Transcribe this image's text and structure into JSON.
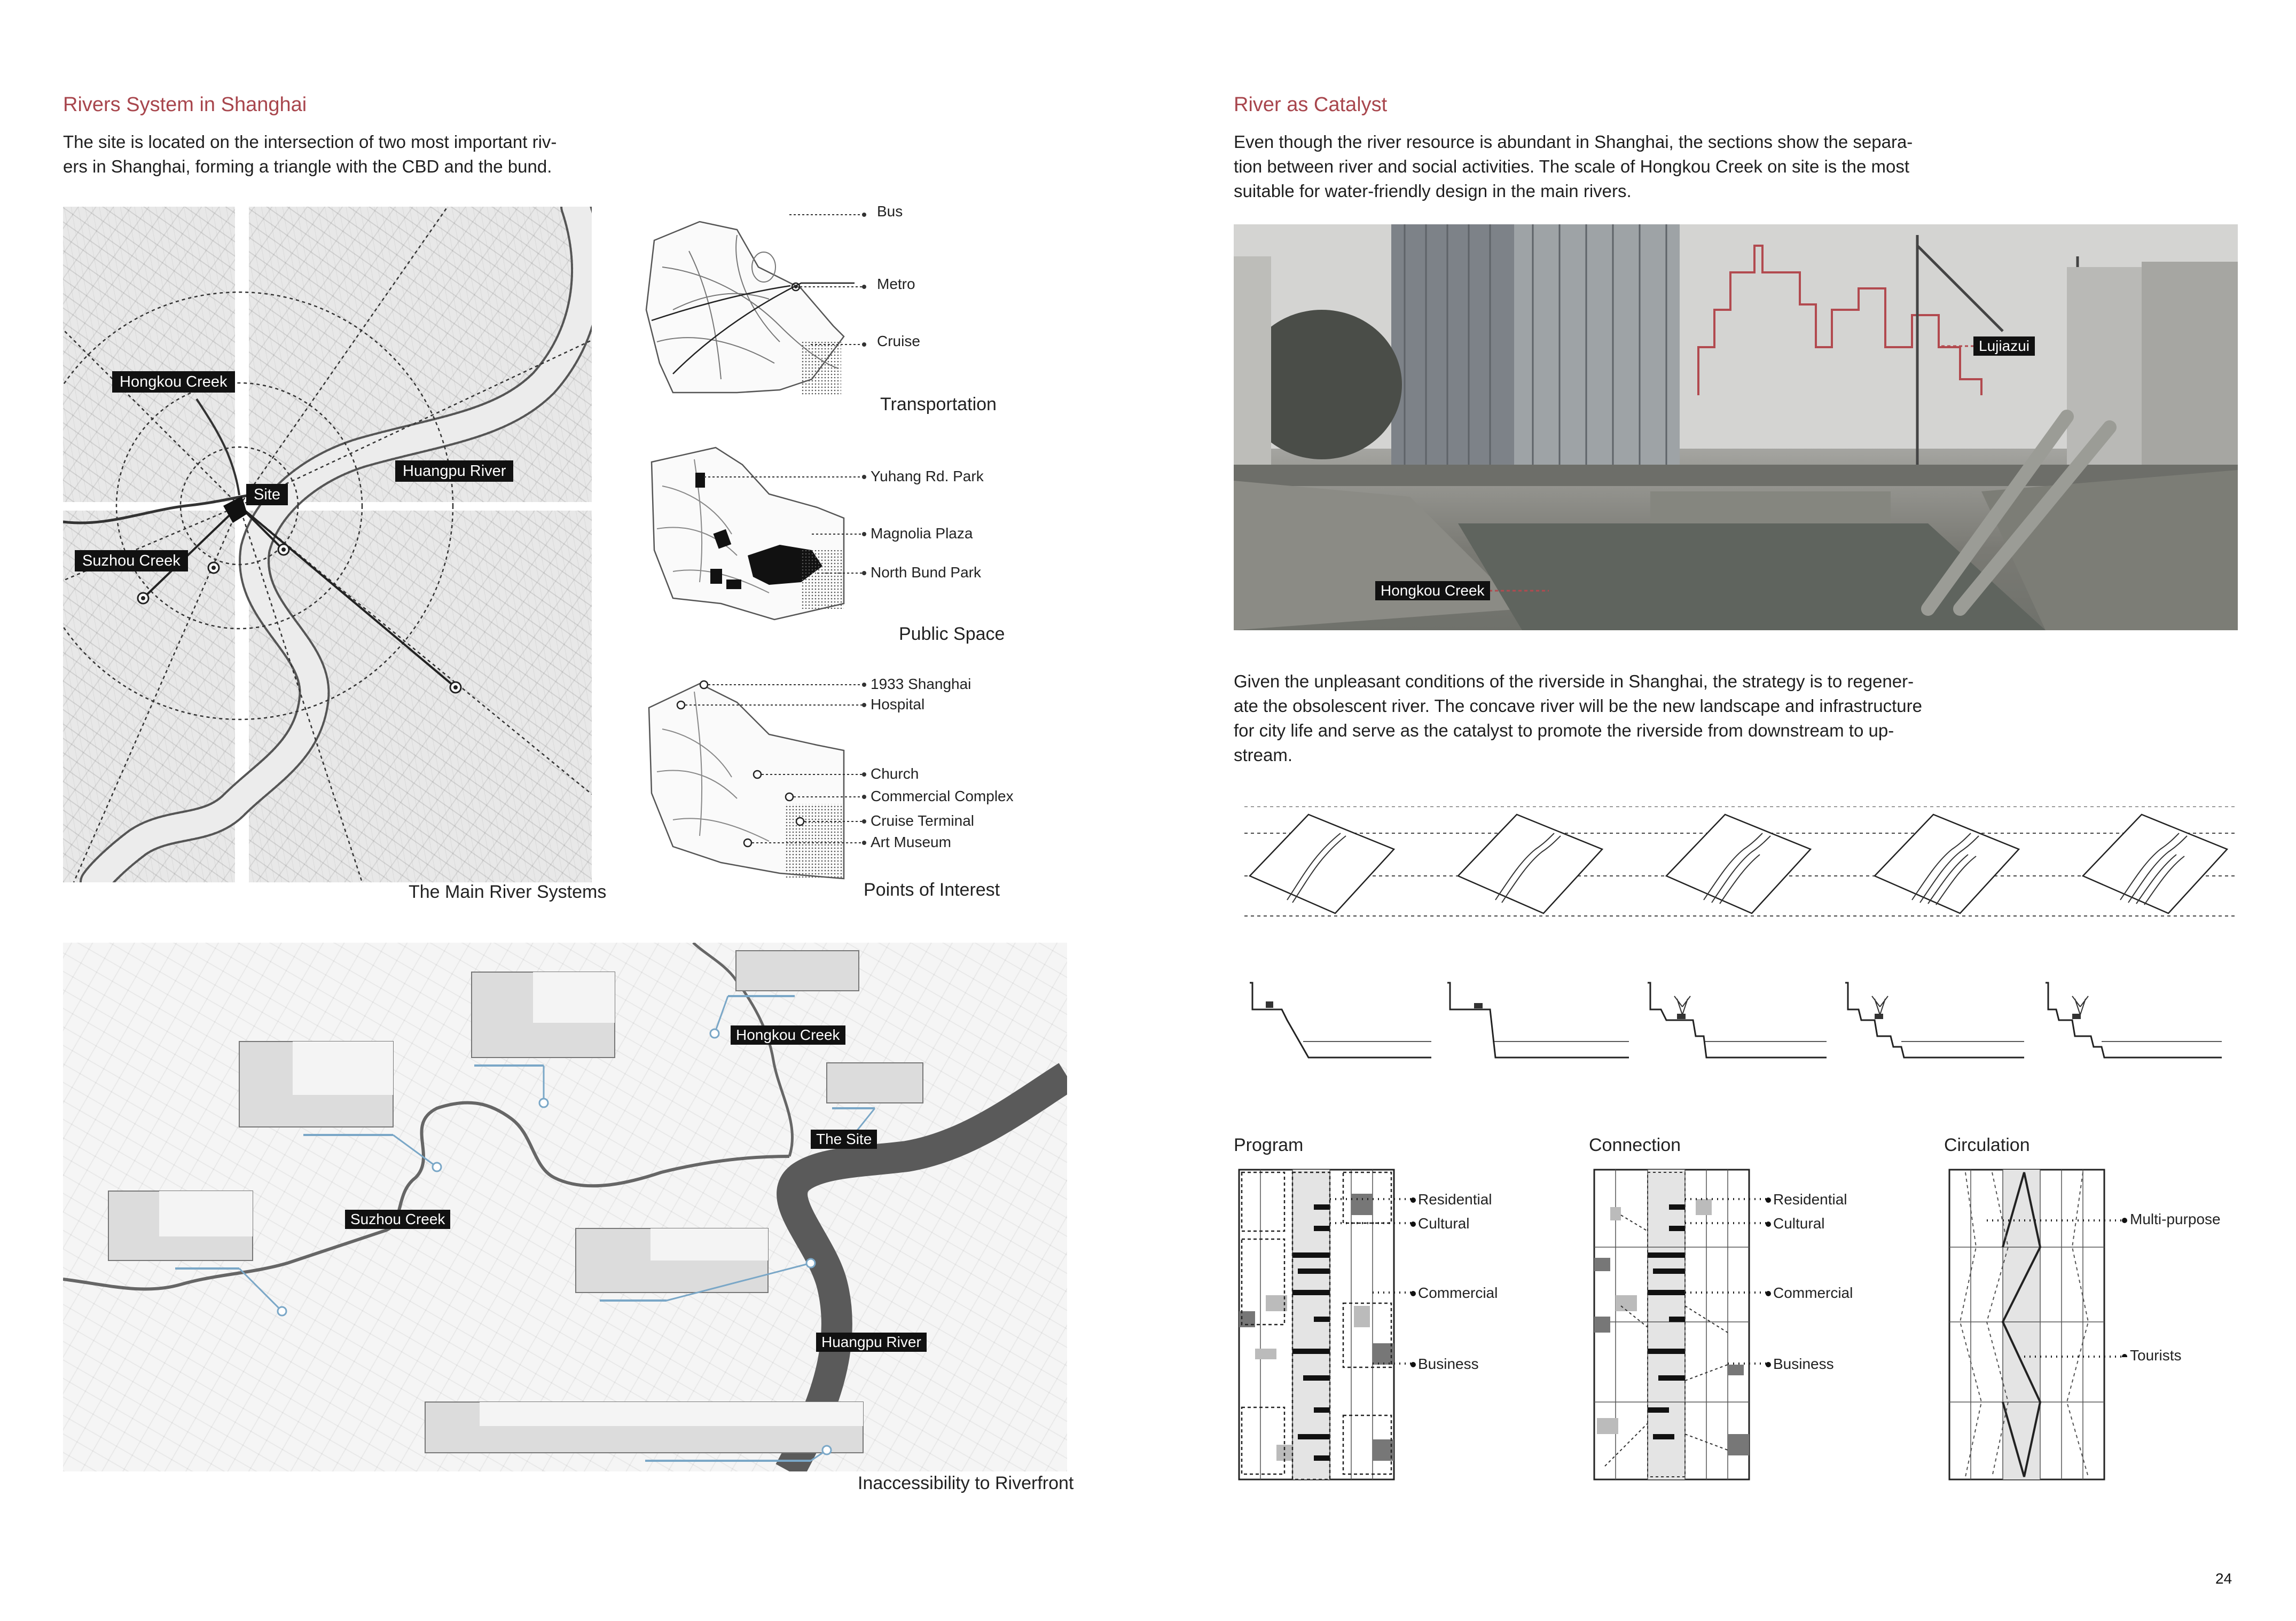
{
  "left": {
    "heading": "Rivers System in Shanghai",
    "intro_line1": "The site is located on the intersection of two most important riv-",
    "intro_line2": "ers in Shanghai, forming a triangle with the CBD and the bund.",
    "main_map": {
      "caption": "The Main River Systems",
      "labels": {
        "hongkou": "Hongkou Creek",
        "huangpu": "Huangpu River",
        "site": "Site",
        "suzhou": "Suzhou Creek"
      }
    },
    "transport": {
      "title": "Transportation",
      "items": [
        "Bus",
        "Metro",
        "Cruise"
      ]
    },
    "public_space": {
      "title": "Public Space",
      "items": [
        "Yuhang Rd. Park",
        "Magnolia Plaza",
        "North Bund Park"
      ]
    },
    "poi": {
      "title": "Points of Interest",
      "items": [
        "1933 Shanghai",
        "Hospital",
        "Church",
        "Commercial Complex",
        "Cruise Terminal",
        "Art Museum"
      ]
    },
    "access_map": {
      "caption": "Inaccessibility to Riverfront",
      "labels": {
        "hongkou": "Hongkou Creek",
        "site": "The Site",
        "suzhou": "Suzhou Creek",
        "huangpu": "Huangpu River"
      }
    }
  },
  "right": {
    "heading": "River as Catalyst",
    "intro_lines": [
      "Even though the river resource is abundant in Shanghai, the sections show the separa-",
      "tion between river and social activities. The scale of Hongkou Creek on site is the most",
      "suitable for water-friendly design in the main rivers."
    ],
    "photo_labels": {
      "lujiazui": "Lujiazui",
      "hongkou": "Hongkou Creek"
    },
    "strategy_lines": [
      "Given the unpleasant conditions of the riverside in Shanghai, the strategy is to regener-",
      "ate the obsolescent river. The concave river will be the new landscape and infrastructure",
      "for city life and serve as the catalyst to promote the riverside from downstream to up-",
      "stream."
    ],
    "program": {
      "title": "Program",
      "items": [
        "Residential",
        "Cultural",
        "Commercial",
        "Business"
      ]
    },
    "connection": {
      "title": "Connection",
      "items": [
        "Residential",
        "Cultural",
        "Commercial",
        "Business"
      ]
    },
    "circulation": {
      "title": "Circulation",
      "items": [
        "Multi-purpose",
        "Tourists"
      ]
    }
  },
  "page_number": "24",
  "colors": {
    "accent": "#a8464d",
    "text": "#1f1f1f",
    "label_bg": "#111111"
  }
}
